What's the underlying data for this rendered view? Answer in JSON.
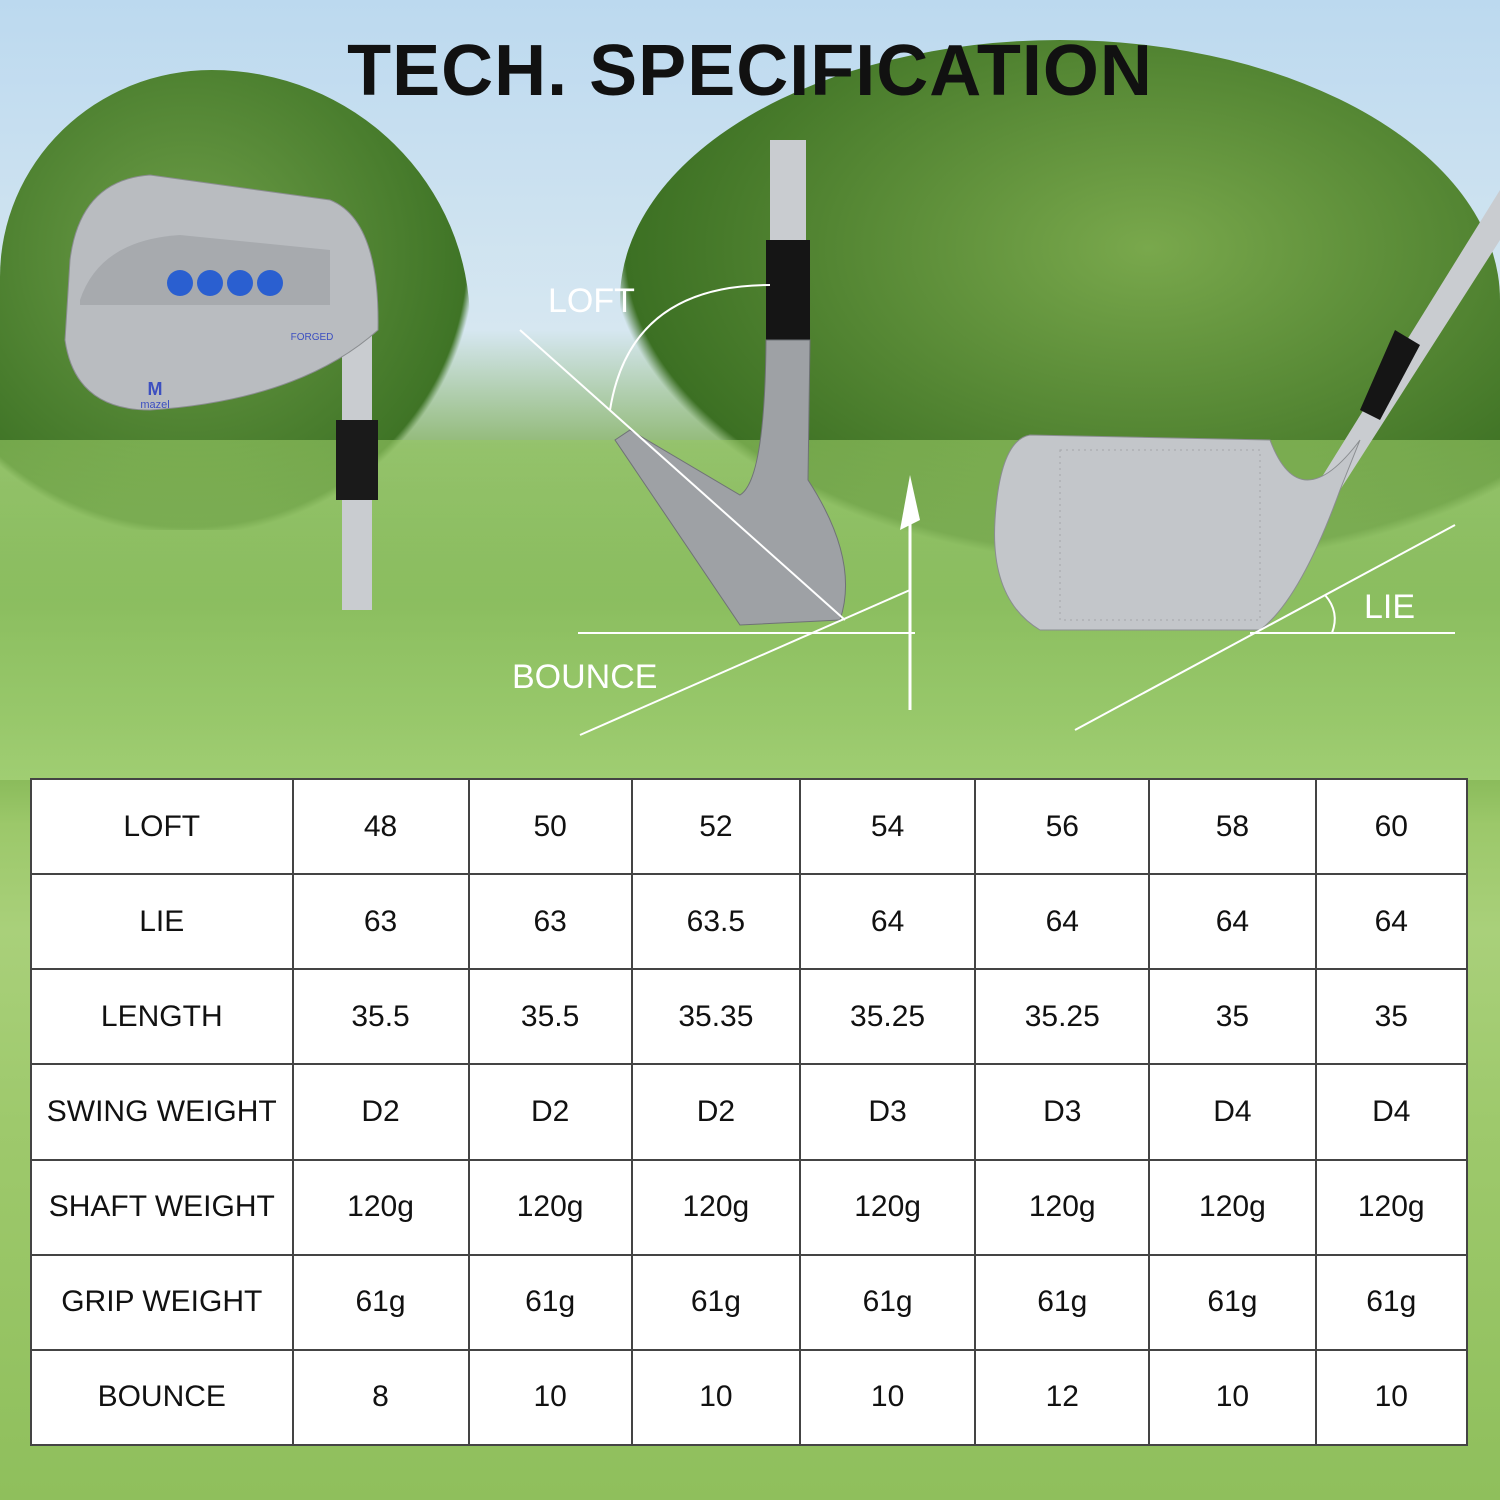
{
  "title": "TECH. SPECIFICATION",
  "brand": "MAZEL",
  "head_marking": "FORGED",
  "diagram_labels": {
    "loft": "LOFT",
    "bounce": "BOUNCE",
    "lie": "LIE"
  },
  "spec_table": {
    "rows": [
      {
        "label": "LOFT",
        "values": [
          "48",
          "50",
          "52",
          "54",
          "56",
          "58",
          "60"
        ]
      },
      {
        "label": "LIE",
        "values": [
          "63",
          "63",
          "63.5",
          "64",
          "64",
          "64",
          "64"
        ]
      },
      {
        "label": "LENGTH",
        "values": [
          "35.5",
          "35.5",
          "35.35",
          "35.25",
          "35.25",
          "35",
          "35"
        ]
      },
      {
        "label": "SWING WEIGHT",
        "values": [
          "D2",
          "D2",
          "D2",
          "D3",
          "D3",
          "D4",
          "D4"
        ]
      },
      {
        "label": "SHAFT WEIGHT",
        "values": [
          "120g",
          "120g",
          "120g",
          "120g",
          "120g",
          "120g",
          "120g"
        ]
      },
      {
        "label": "GRIP WEIGHT",
        "values": [
          "61g",
          "61g",
          "61g",
          "61g",
          "61g",
          "61g",
          "61g"
        ]
      },
      {
        "label": "BOUNCE",
        "values": [
          "8",
          "10",
          "10",
          "10",
          "12",
          "10",
          "10"
        ]
      }
    ]
  }
}
